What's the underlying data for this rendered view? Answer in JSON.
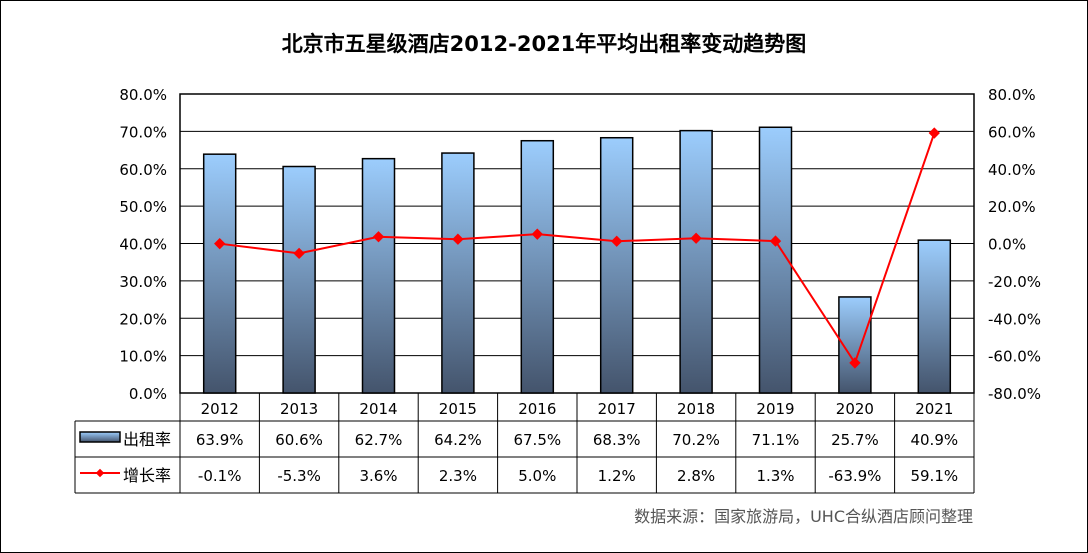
{
  "chart_data": {
    "type": "bar+line",
    "title": "北京市五星级酒店2012-2021年平均出租率变动趋势图",
    "categories": [
      "2012",
      "2013",
      "2014",
      "2015",
      "2016",
      "2017",
      "2018",
      "2019",
      "2020",
      "2021"
    ],
    "series": [
      {
        "name": "出租率",
        "type": "bar",
        "axis": "left",
        "values": [
          63.9,
          60.6,
          62.7,
          64.2,
          67.5,
          68.3,
          70.2,
          71.1,
          25.7,
          40.9
        ],
        "labels": [
          "63.9%",
          "60.6%",
          "62.7%",
          "64.2%",
          "67.5%",
          "68.3%",
          "70.2%",
          "71.1%",
          "25.7%",
          "40.9%"
        ],
        "color_top": "#9ccdfd",
        "color_bottom": "#44546c"
      },
      {
        "name": "增长率",
        "type": "line",
        "axis": "right",
        "values": [
          -0.1,
          -5.3,
          3.6,
          2.3,
          5.0,
          1.2,
          2.8,
          1.3,
          -63.9,
          59.1
        ],
        "labels": [
          "-0.1%",
          "-5.3%",
          "3.6%",
          "2.3%",
          "5.0%",
          "1.2%",
          "2.8%",
          "1.3%",
          "-63.9%",
          "59.1%"
        ],
        "color": "#ff0000"
      }
    ],
    "y_left": {
      "range": [
        0,
        80
      ],
      "ticks": [
        "0.0%",
        "10.0%",
        "20.0%",
        "30.0%",
        "40.0%",
        "50.0%",
        "60.0%",
        "70.0%",
        "80.0%"
      ]
    },
    "y_right": {
      "range": [
        -80,
        80
      ],
      "ticks": [
        "-80.0%",
        "-60.0%",
        "-40.0%",
        "-20.0%",
        "0.0%",
        "20.0%",
        "40.0%",
        "60.0%",
        "80.0%"
      ]
    },
    "grid": true,
    "legend": "data-table",
    "source": "数据来源：国家旅游局，UHC合纵酒店顾问整理"
  }
}
